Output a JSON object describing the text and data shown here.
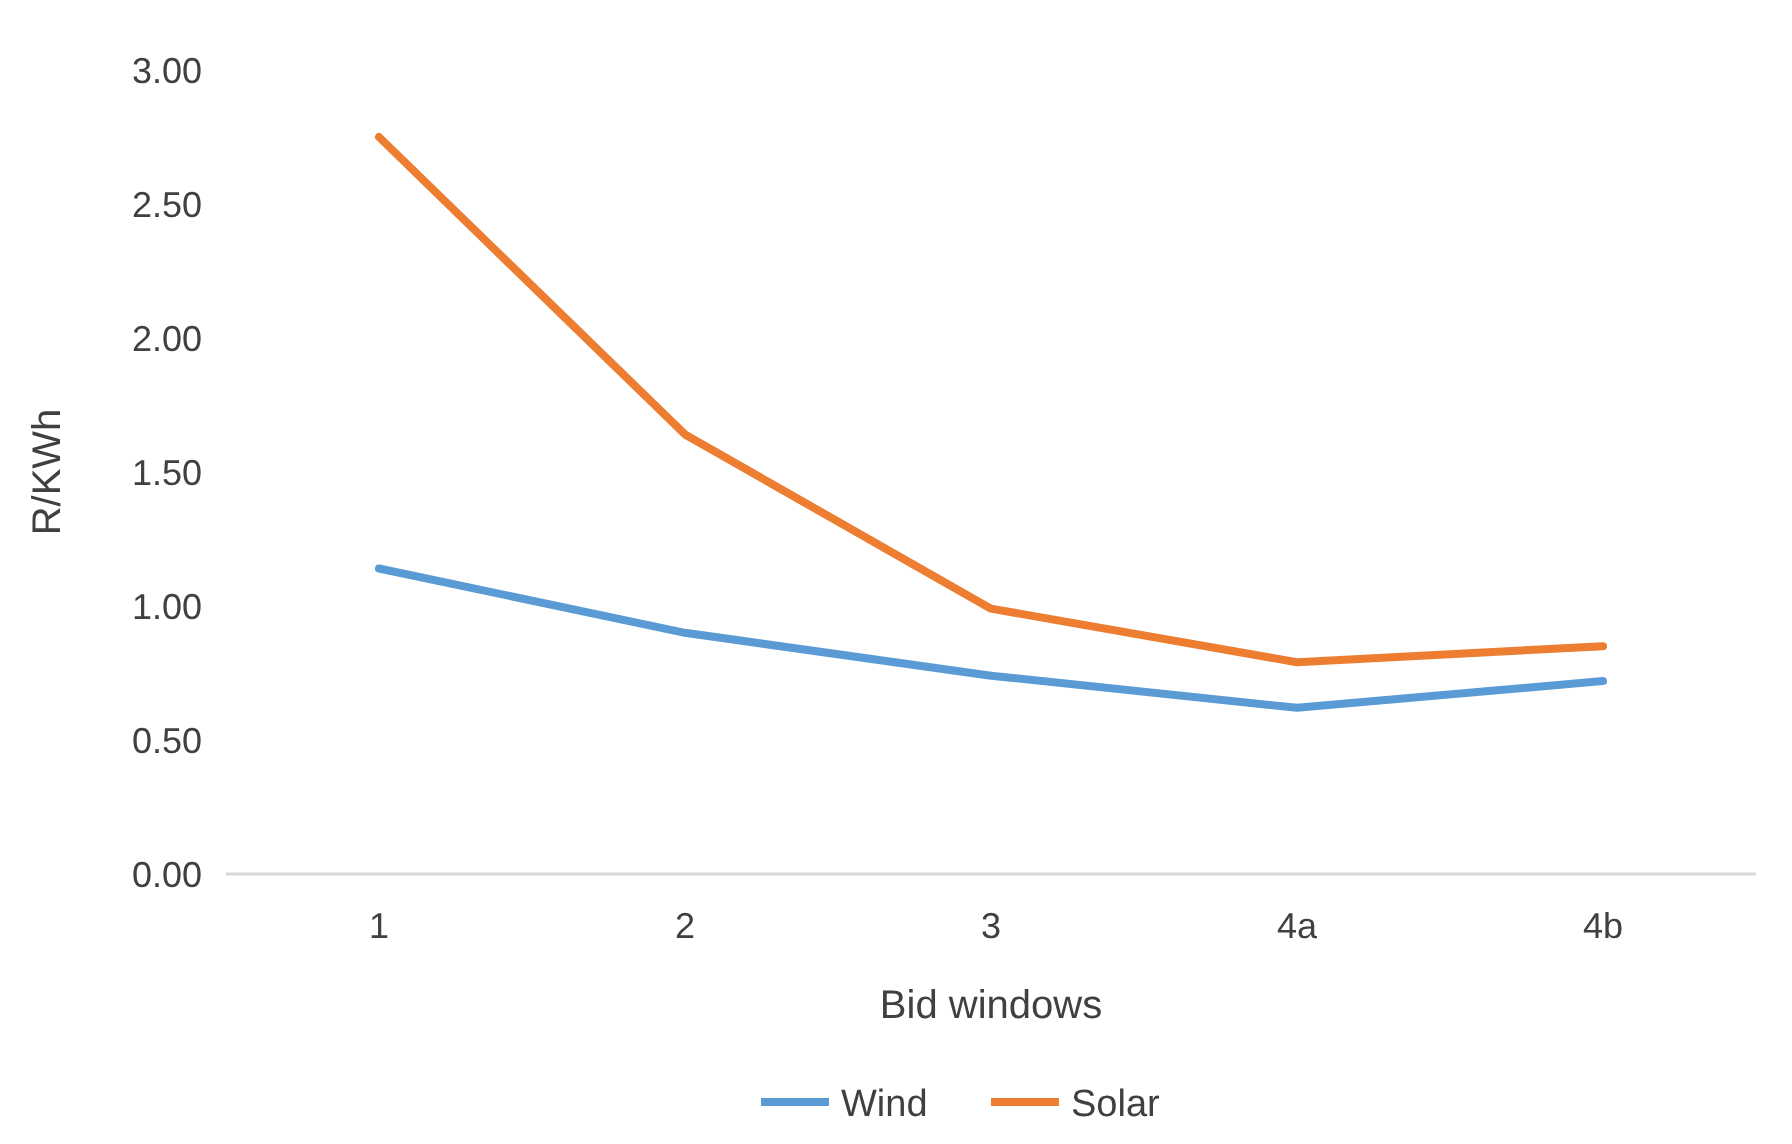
{
  "chart_data": {
    "type": "line",
    "xlabel": "Bid windows",
    "ylabel": "R/KWh",
    "categories": [
      "1",
      "2",
      "3",
      "4a",
      "4b"
    ],
    "series": [
      {
        "name": "Wind",
        "color": "#5b9bd5",
        "values": [
          1.14,
          0.9,
          0.74,
          0.62,
          0.72
        ]
      },
      {
        "name": "Solar",
        "color": "#ed7d31",
        "values": [
          2.75,
          1.64,
          0.99,
          0.79,
          0.85
        ]
      }
    ],
    "ylim": [
      0,
      3
    ],
    "yticks": [
      {
        "value": 0,
        "label": "0.00"
      },
      {
        "value": 0.5,
        "label": "0.50"
      },
      {
        "value": 1,
        "label": "1.00"
      },
      {
        "value": 1.5,
        "label": "1.50"
      },
      {
        "value": 2,
        "label": "2.00"
      },
      {
        "value": 2.5,
        "label": "2.50"
      },
      {
        "value": 3,
        "label": "3.00"
      }
    ],
    "grid": false,
    "legend": "bottom",
    "marker": "none",
    "line_style": "solid"
  }
}
